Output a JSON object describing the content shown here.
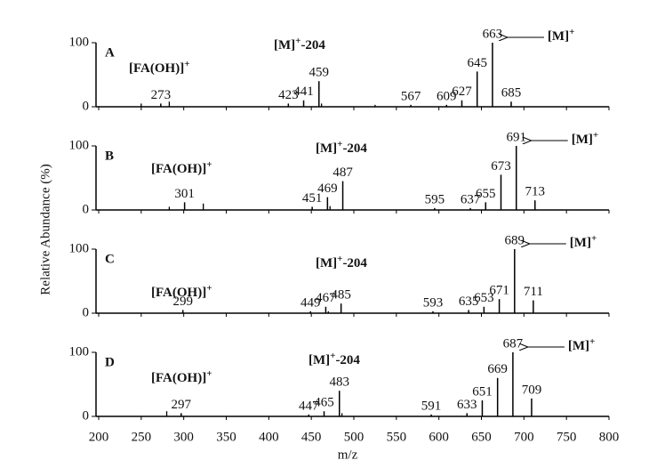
{
  "chart_data": {
    "type": "bar",
    "xlabel": "m/z",
    "ylabel": "Relative Abundance (%)",
    "xlim": [
      200,
      800
    ],
    "xticks": [
      200,
      250,
      300,
      350,
      400,
      450,
      500,
      550,
      600,
      650,
      700,
      750,
      800
    ],
    "color": "#000000",
    "panels": [
      {
        "label": "A",
        "ylim": [
          0,
          100
        ],
        "yticks": [
          0,
          100
        ],
        "fragment": {
          "text": "[M]",
          "sup": "+",
          "suffix": "-204"
        },
        "fa": {
          "text": "[FA(OH)]",
          "sup": "+"
        },
        "parent": {
          "text": "[M]",
          "sup": "+"
        },
        "peaks": {
          "x": [
            273,
            423,
            441,
            459,
            567,
            609,
            627,
            645,
            663,
            685
          ],
          "values": [
            5,
            5,
            10,
            40,
            3,
            3,
            10,
            55,
            100,
            8
          ]
        },
        "minor": {
          "x": [
            250,
            283,
            462,
            525
          ],
          "values": [
            5,
            8,
            5,
            3
          ]
        }
      },
      {
        "label": "B",
        "ylim": [
          0,
          100
        ],
        "yticks": [
          0,
          100
        ],
        "fragment": {
          "text": "[M]",
          "sup": "+",
          "suffix": "-204"
        },
        "fa": {
          "text": "[FA(OH)]",
          "sup": "+"
        },
        "parent": {
          "text": "[M]",
          "sup": "+"
        },
        "peaks": {
          "x": [
            301,
            451,
            469,
            487,
            595,
            637,
            655,
            673,
            691,
            713
          ],
          "values": [
            12,
            5,
            20,
            45,
            3,
            3,
            12,
            55,
            100,
            15
          ]
        },
        "minor": {
          "x": [
            283,
            323,
            472
          ],
          "values": [
            5,
            10,
            6
          ]
        }
      },
      {
        "label": "C",
        "ylim": [
          0,
          100
        ],
        "yticks": [
          0,
          100
        ],
        "fragment": {
          "text": "[M]",
          "sup": "+",
          "suffix": "-204"
        },
        "fa": {
          "text": "[FA(OH)]",
          "sup": "+"
        },
        "parent": {
          "text": "[M]",
          "sup": "+"
        },
        "peaks": {
          "x": [
            299,
            449,
            467,
            485,
            593,
            635,
            653,
            671,
            689,
            711
          ],
          "values": [
            5,
            3,
            10,
            15,
            3,
            5,
            10,
            22,
            100,
            20
          ]
        },
        "minor": {
          "x": [
            470
          ],
          "values": [
            3
          ]
        }
      },
      {
        "label": "D",
        "ylim": [
          0,
          100
        ],
        "yticks": [
          0,
          100
        ],
        "fragment": {
          "text": "[M]",
          "sup": "+",
          "suffix": "-204"
        },
        "fa": {
          "text": "[FA(OH)]",
          "sup": "+"
        },
        "parent": {
          "text": "[M]",
          "sup": "+"
        },
        "peaks": {
          "x": [
            297,
            447,
            465,
            483,
            591,
            633,
            651,
            669,
            687,
            709
          ],
          "values": [
            5,
            3,
            8,
            40,
            3,
            5,
            25,
            60,
            100,
            28
          ]
        },
        "minor": {
          "x": [
            280,
            486
          ],
          "values": [
            8,
            5
          ]
        }
      }
    ]
  }
}
